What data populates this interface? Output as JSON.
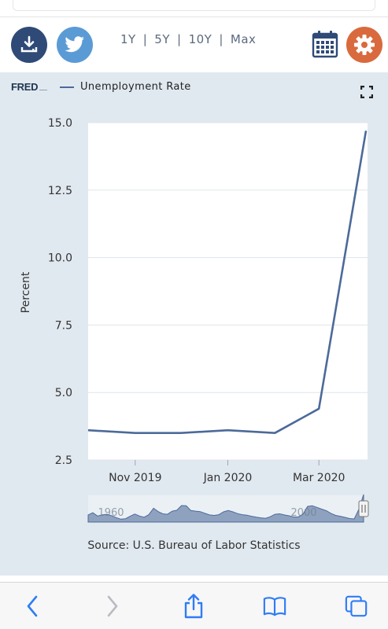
{
  "toolbar": {
    "ranges": [
      "1Y",
      "5Y",
      "10Y",
      "Max"
    ],
    "separator": "|"
  },
  "header": {
    "logo_text": "FRED"
  },
  "colors": {
    "line": "#4c6a99",
    "panel_bg": "#e1e9f0",
    "nav_fill": "#8ea2c0",
    "download_btn": "#2f4a77",
    "twitter_btn": "#5b9bd5",
    "settings_btn": "#d96a3d",
    "calendar_icon": "#2f4a77",
    "browser_blue": "#2f7cf6"
  },
  "icons": {
    "download": "download-icon",
    "twitter": "twitter-bird-icon",
    "calendar": "calendar-icon",
    "settings": "gear-icon",
    "fullscreen": "fullscreen-icon",
    "back": "chevron-left-icon",
    "forward": "chevron-right-icon",
    "share": "share-icon",
    "bookmarks": "book-icon",
    "tabs": "tabs-icon"
  },
  "chart_data": {
    "type": "line",
    "title": "",
    "series": [
      {
        "name": "Unemployment Rate",
        "x": [
          "2019-10-01",
          "2019-11-01",
          "2019-12-01",
          "2020-01-01",
          "2020-02-01",
          "2020-03-01",
          "2020-04-01"
        ],
        "values": [
          3.6,
          3.5,
          3.5,
          3.6,
          3.5,
          4.4,
          14.7
        ]
      }
    ],
    "xlabel": "",
    "ylabel": "Percent",
    "ylim": [
      2.5,
      15.0
    ],
    "yticks": [
      "2.5",
      "5.0",
      "7.5",
      "10.0",
      "12.5",
      "15.0"
    ],
    "xtick_labels": [
      {
        "x": "2019-11-01",
        "label": "Nov 2019"
      },
      {
        "x": "2020-01-01",
        "label": "Jan 2020"
      },
      {
        "x": "2020-03-01",
        "label": "Mar 2020"
      }
    ],
    "grid": true,
    "legend": "top-left",
    "navigator": {
      "labels": [
        "1960",
        "2000"
      ],
      "values": [
        5.5,
        6.5,
        5.0,
        5.5,
        5.8,
        5.2,
        4.3,
        3.6,
        3.8,
        4.9,
        5.9,
        5.0,
        4.5,
        5.6,
        8.5,
        7.0,
        6.0,
        5.8,
        7.2,
        7.6,
        9.7,
        9.6,
        7.5,
        7.2,
        7.0,
        6.2,
        5.5,
        5.3,
        5.6,
        6.9,
        7.5,
        6.9,
        6.1,
        5.6,
        5.4,
        4.9,
        4.5,
        4.2,
        4.0,
        4.7,
        5.8,
        6.0,
        5.5,
        5.1,
        4.6,
        4.6,
        5.8,
        9.3,
        9.6,
        8.9,
        8.1,
        7.4,
        6.2,
        5.3,
        4.9,
        4.4,
        3.9,
        3.7,
        8.1,
        14.7
      ]
    },
    "source": "Source: U.S. Bureau of Labor Statistics"
  }
}
